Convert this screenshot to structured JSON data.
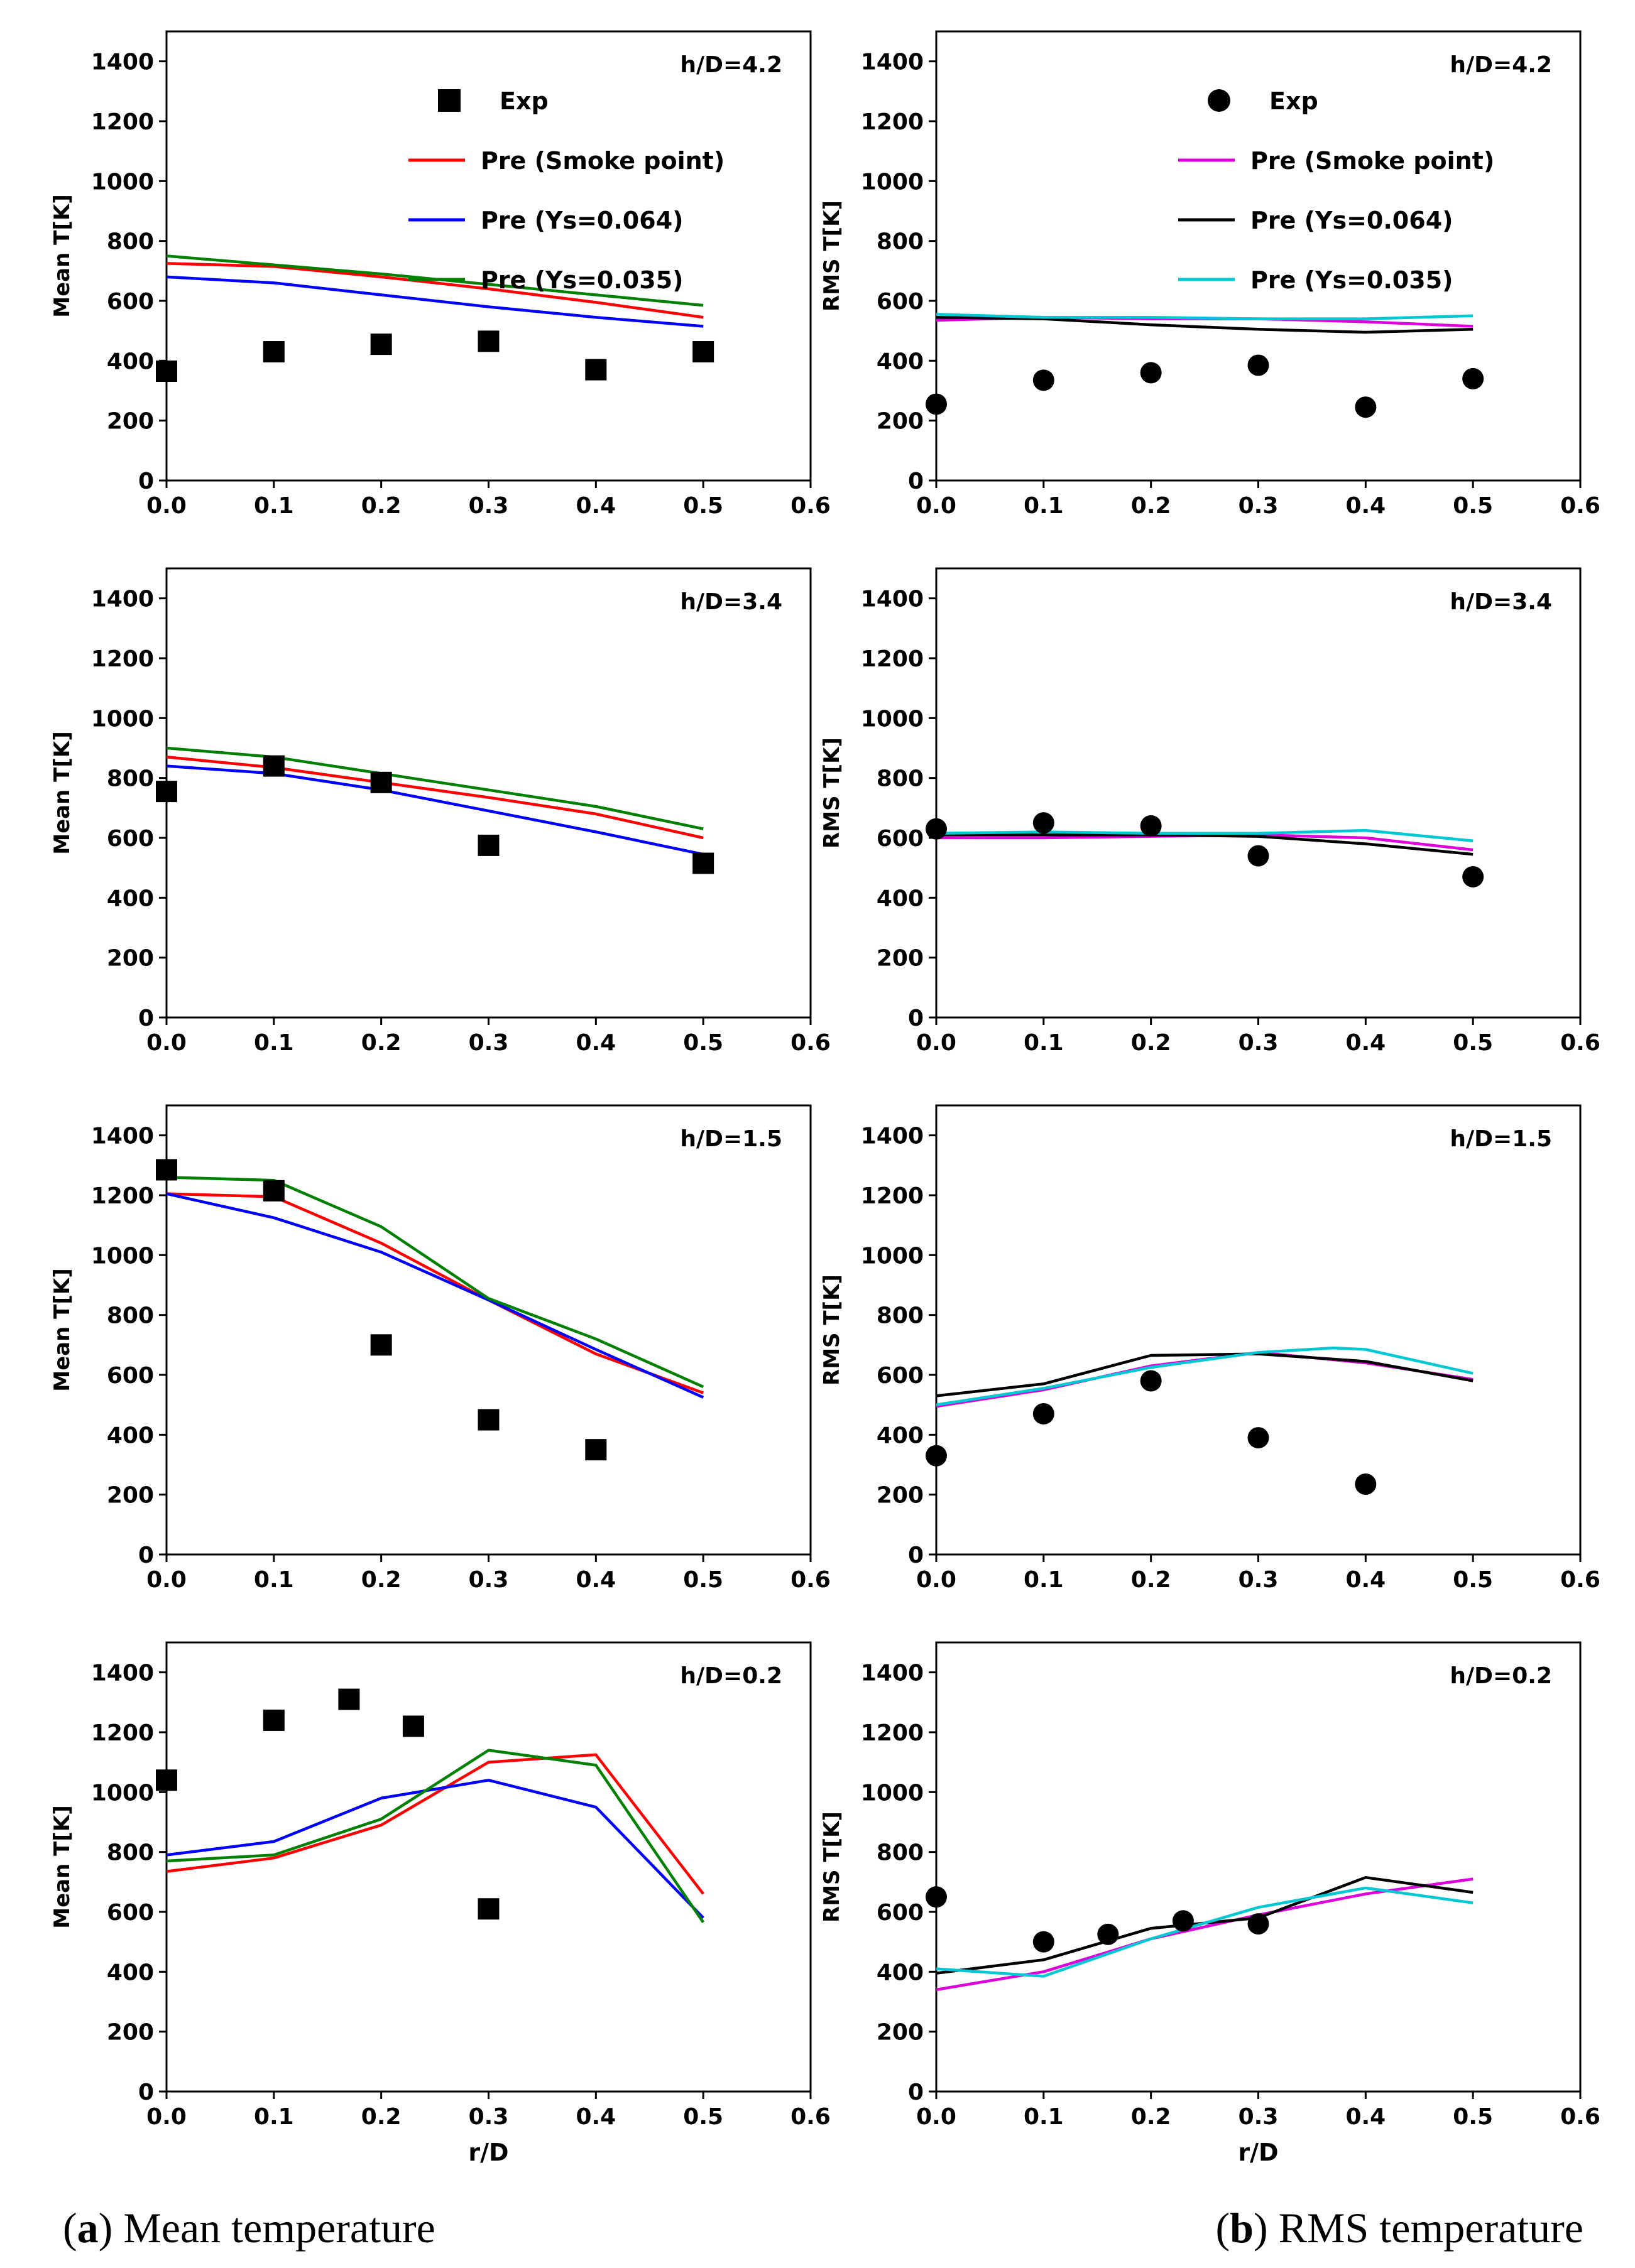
{
  "chart_data": [
    {
      "type": "line",
      "column": "a",
      "title": "h/D=4.2",
      "xlabel": "",
      "ylabel": "Mean T[K]",
      "xlim": [
        0,
        0.6
      ],
      "ylim": [
        0,
        1500
      ],
      "xticks": [
        "0.0",
        "0.1",
        "0.2",
        "0.3",
        "0.4",
        "0.5",
        "0.6"
      ],
      "yticks": [
        "0",
        "200",
        "400",
        "600",
        "800",
        "1000",
        "1200",
        "1400"
      ],
      "legend": [
        "Exp",
        "Pre (Smoke point)",
        "Pre (Ys=0.064)",
        "Pre (Ys=0.035)"
      ],
      "exp_marker": "square",
      "exp": {
        "x": [
          0.0,
          0.1,
          0.2,
          0.3,
          0.4,
          0.5
        ],
        "y": [
          365,
          430,
          455,
          465,
          370,
          430
        ]
      },
      "series": [
        {
          "name": "Pre (Smoke point)",
          "color": "#ff0000",
          "x": [
            0,
            0.1,
            0.2,
            0.3,
            0.4,
            0.5
          ],
          "y": [
            725,
            715,
            680,
            640,
            595,
            545
          ]
        },
        {
          "name": "Pre (Ys=0.064)",
          "color": "#0000ff",
          "x": [
            0,
            0.1,
            0.2,
            0.3,
            0.4,
            0.5
          ],
          "y": [
            680,
            660,
            620,
            580,
            545,
            515
          ]
        },
        {
          "name": "Pre (Ys=0.035)",
          "color": "#008000",
          "x": [
            0,
            0.1,
            0.2,
            0.3,
            0.4,
            0.5
          ],
          "y": [
            750,
            720,
            690,
            655,
            620,
            585
          ]
        }
      ]
    },
    {
      "type": "line",
      "column": "b",
      "title": "h/D=4.2",
      "xlabel": "",
      "ylabel": "RMS T[K]",
      "xlim": [
        0,
        0.6
      ],
      "ylim": [
        0,
        1500
      ],
      "xticks": [
        "0.0",
        "0.1",
        "0.2",
        "0.3",
        "0.4",
        "0.5",
        "0.6"
      ],
      "yticks": [
        "0",
        "200",
        "400",
        "600",
        "800",
        "1000",
        "1200",
        "1400"
      ],
      "legend": [
        "Exp",
        "Pre (Smoke point)",
        "Pre (Ys=0.064)",
        "Pre (Ys=0.035)"
      ],
      "exp_marker": "circle",
      "exp": {
        "x": [
          0.0,
          0.1,
          0.2,
          0.3,
          0.4,
          0.5
        ],
        "y": [
          255,
          335,
          360,
          385,
          245,
          340
        ]
      },
      "series": [
        {
          "name": "Pre (Smoke point)",
          "color": "#dd00dd",
          "x": [
            0,
            0.1,
            0.2,
            0.3,
            0.4,
            0.5
          ],
          "y": [
            535,
            545,
            540,
            540,
            530,
            515
          ]
        },
        {
          "name": "Pre (Ys=0.064)",
          "color": "#000000",
          "x": [
            0,
            0.1,
            0.2,
            0.3,
            0.4,
            0.5
          ],
          "y": [
            545,
            540,
            520,
            505,
            495,
            505
          ]
        },
        {
          "name": "Pre (Ys=0.035)",
          "color": "#00c8d2",
          "x": [
            0,
            0.1,
            0.2,
            0.3,
            0.4,
            0.5
          ],
          "y": [
            555,
            545,
            545,
            540,
            540,
            550
          ]
        }
      ]
    },
    {
      "type": "line",
      "column": "a",
      "title": "h/D=3.4",
      "xlabel": "",
      "ylabel": "Mean T[K]",
      "xlim": [
        0,
        0.6
      ],
      "ylim": [
        0,
        1500
      ],
      "xticks": [
        "0.0",
        "0.1",
        "0.2",
        "0.3",
        "0.4",
        "0.5",
        "0.6"
      ],
      "yticks": [
        "0",
        "200",
        "400",
        "600",
        "800",
        "1000",
        "1200",
        "1400"
      ],
      "legend": [],
      "exp_marker": "square",
      "exp": {
        "x": [
          0.0,
          0.1,
          0.2,
          0.3,
          0.5
        ],
        "y": [
          755,
          840,
          785,
          575,
          515
        ]
      },
      "series": [
        {
          "name": "Pre (Smoke point)",
          "color": "#ff0000",
          "x": [
            0,
            0.1,
            0.2,
            0.3,
            0.4,
            0.5
          ],
          "y": [
            870,
            835,
            785,
            735,
            680,
            600
          ]
        },
        {
          "name": "Pre (Ys=0.064)",
          "color": "#0000ff",
          "x": [
            0,
            0.1,
            0.2,
            0.3,
            0.4,
            0.5
          ],
          "y": [
            840,
            815,
            760,
            690,
            620,
            545
          ]
        },
        {
          "name": "Pre (Ys=0.035)",
          "color": "#008000",
          "x": [
            0,
            0.1,
            0.2,
            0.3,
            0.4,
            0.5
          ],
          "y": [
            900,
            870,
            815,
            760,
            705,
            630
          ]
        }
      ]
    },
    {
      "type": "line",
      "column": "b",
      "title": "h/D=3.4",
      "xlabel": "",
      "ylabel": "RMS T[K]",
      "xlim": [
        0,
        0.6
      ],
      "ylim": [
        0,
        1500
      ],
      "xticks": [
        "0.0",
        "0.1",
        "0.2",
        "0.3",
        "0.4",
        "0.5",
        "0.6"
      ],
      "yticks": [
        "0",
        "200",
        "400",
        "600",
        "800",
        "1000",
        "1200",
        "1400"
      ],
      "legend": [],
      "exp_marker": "circle",
      "exp": {
        "x": [
          0.0,
          0.1,
          0.2,
          0.3,
          0.5
        ],
        "y": [
          630,
          650,
          640,
          540,
          470
        ]
      },
      "series": [
        {
          "name": "Pre (Smoke point)",
          "color": "#dd00dd",
          "x": [
            0,
            0.1,
            0.2,
            0.3,
            0.4,
            0.5
          ],
          "y": [
            600,
            600,
            605,
            610,
            600,
            560
          ]
        },
        {
          "name": "Pre (Ys=0.064)",
          "color": "#000000",
          "x": [
            0,
            0.1,
            0.2,
            0.3,
            0.4,
            0.5
          ],
          "y": [
            610,
            610,
            610,
            605,
            580,
            545
          ]
        },
        {
          "name": "Pre (Ys=0.035)",
          "color": "#00c8d2",
          "x": [
            0,
            0.1,
            0.2,
            0.3,
            0.4,
            0.5
          ],
          "y": [
            615,
            620,
            615,
            615,
            625,
            590
          ]
        }
      ]
    },
    {
      "type": "line",
      "column": "a",
      "title": "h/D=1.5",
      "xlabel": "",
      "ylabel": "Mean T[K]",
      "xlim": [
        0,
        0.6
      ],
      "ylim": [
        0,
        1500
      ],
      "xticks": [
        "0.0",
        "0.1",
        "0.2",
        "0.3",
        "0.4",
        "0.5",
        "0.6"
      ],
      "yticks": [
        "0",
        "200",
        "400",
        "600",
        "800",
        "1000",
        "1200",
        "1400"
      ],
      "legend": [],
      "exp_marker": "square",
      "exp": {
        "x": [
          0.0,
          0.1,
          0.2,
          0.3,
          0.4
        ],
        "y": [
          1285,
          1215,
          700,
          450,
          350
        ]
      },
      "series": [
        {
          "name": "Pre (Smoke point)",
          "color": "#ff0000",
          "x": [
            0,
            0.1,
            0.2,
            0.3,
            0.4,
            0.5
          ],
          "y": [
            1205,
            1195,
            1040,
            850,
            670,
            540
          ]
        },
        {
          "name": "Pre (Ys=0.064)",
          "color": "#0000ff",
          "x": [
            0,
            0.1,
            0.2,
            0.3,
            0.4,
            0.5
          ],
          "y": [
            1205,
            1125,
            1010,
            850,
            685,
            525
          ]
        },
        {
          "name": "Pre (Ys=0.035)",
          "color": "#008000",
          "x": [
            0,
            0.1,
            0.2,
            0.3,
            0.4,
            0.5
          ],
          "y": [
            1260,
            1250,
            1095,
            855,
            720,
            560
          ]
        }
      ]
    },
    {
      "type": "line",
      "column": "b",
      "title": "h/D=1.5",
      "xlabel": "",
      "ylabel": "RMS T[K]",
      "xlim": [
        0,
        0.6
      ],
      "ylim": [
        0,
        1500
      ],
      "xticks": [
        "0.0",
        "0.1",
        "0.2",
        "0.3",
        "0.4",
        "0.5",
        "0.6"
      ],
      "yticks": [
        "0",
        "200",
        "400",
        "600",
        "800",
        "1000",
        "1200",
        "1400"
      ],
      "legend": [],
      "exp_marker": "circle",
      "exp": {
        "x": [
          0.0,
          0.1,
          0.2,
          0.3,
          0.4
        ],
        "y": [
          330,
          470,
          580,
          390,
          235
        ]
      },
      "series": [
        {
          "name": "Pre (Smoke point)",
          "color": "#dd00dd",
          "x": [
            0,
            0.1,
            0.2,
            0.3,
            0.4,
            0.5
          ],
          "y": [
            495,
            550,
            630,
            675,
            640,
            585
          ]
        },
        {
          "name": "Pre (Ys=0.064)",
          "color": "#000000",
          "x": [
            0,
            0.1,
            0.2,
            0.3,
            0.4,
            0.5
          ],
          "y": [
            530,
            570,
            665,
            670,
            645,
            580
          ]
        },
        {
          "name": "Pre (Ys=0.035)",
          "color": "#00c8d2",
          "x": [
            0,
            0.1,
            0.2,
            0.3,
            0.37,
            0.4,
            0.5
          ],
          "y": [
            500,
            555,
            625,
            675,
            690,
            685,
            605
          ]
        }
      ]
    },
    {
      "type": "line",
      "column": "a",
      "title": "h/D=0.2",
      "xlabel": "r/D",
      "ylabel": "Mean T[K]",
      "xlim": [
        0,
        0.6
      ],
      "ylim": [
        0,
        1500
      ],
      "xticks": [
        "0.0",
        "0.1",
        "0.2",
        "0.3",
        "0.4",
        "0.5",
        "0.6"
      ],
      "yticks": [
        "0",
        "200",
        "400",
        "600",
        "800",
        "1000",
        "1200",
        "1400"
      ],
      "legend": [],
      "exp_marker": "square",
      "exp": {
        "x": [
          0.0,
          0.1,
          0.17,
          0.23,
          0.3
        ],
        "y": [
          1040,
          1240,
          1310,
          1220,
          610
        ]
      },
      "series": [
        {
          "name": "Pre (Smoke point)",
          "color": "#ff0000",
          "x": [
            0,
            0.1,
            0.2,
            0.3,
            0.4,
            0.5
          ],
          "y": [
            735,
            780,
            890,
            1100,
            1125,
            660
          ]
        },
        {
          "name": "Pre (Ys=0.064)",
          "color": "#0000ff",
          "x": [
            0,
            0.1,
            0.2,
            0.3,
            0.4,
            0.5
          ],
          "y": [
            790,
            835,
            980,
            1040,
            950,
            580
          ]
        },
        {
          "name": "Pre (Ys=0.035)",
          "color": "#008000",
          "x": [
            0,
            0.1,
            0.2,
            0.3,
            0.4,
            0.5
          ],
          "y": [
            770,
            790,
            910,
            1140,
            1090,
            565
          ]
        }
      ]
    },
    {
      "type": "line",
      "column": "b",
      "title": "h/D=0.2",
      "xlabel": "r/D",
      "ylabel": "RMS T[K]",
      "xlim": [
        0,
        0.6
      ],
      "ylim": [
        0,
        1500
      ],
      "xticks": [
        "0.0",
        "0.1",
        "0.2",
        "0.3",
        "0.4",
        "0.5",
        "0.6"
      ],
      "yticks": [
        "0",
        "200",
        "400",
        "600",
        "800",
        "1000",
        "1200",
        "1400"
      ],
      "legend": [],
      "exp_marker": "circle",
      "exp": {
        "x": [
          0.0,
          0.1,
          0.16,
          0.23,
          0.3
        ],
        "y": [
          650,
          500,
          525,
          570,
          560
        ]
      },
      "series": [
        {
          "name": "Pre (Smoke point)",
          "color": "#dd00dd",
          "x": [
            0,
            0.1,
            0.2,
            0.3,
            0.4,
            0.5
          ],
          "y": [
            340,
            400,
            510,
            590,
            660,
            710
          ]
        },
        {
          "name": "Pre (Ys=0.064)",
          "color": "#000000",
          "x": [
            0,
            0.1,
            0.2,
            0.3,
            0.4,
            0.5
          ],
          "y": [
            395,
            440,
            545,
            580,
            715,
            665
          ]
        },
        {
          "name": "Pre (Ys=0.035)",
          "color": "#00c8d2",
          "x": [
            0,
            0.1,
            0.2,
            0.3,
            0.4,
            0.5
          ],
          "y": [
            410,
            385,
            510,
            615,
            680,
            630
          ]
        }
      ]
    }
  ],
  "captions": {
    "a": {
      "label": "a",
      "text": "Mean temperature"
    },
    "b": {
      "label": "b",
      "text": "RMS temperature"
    }
  }
}
